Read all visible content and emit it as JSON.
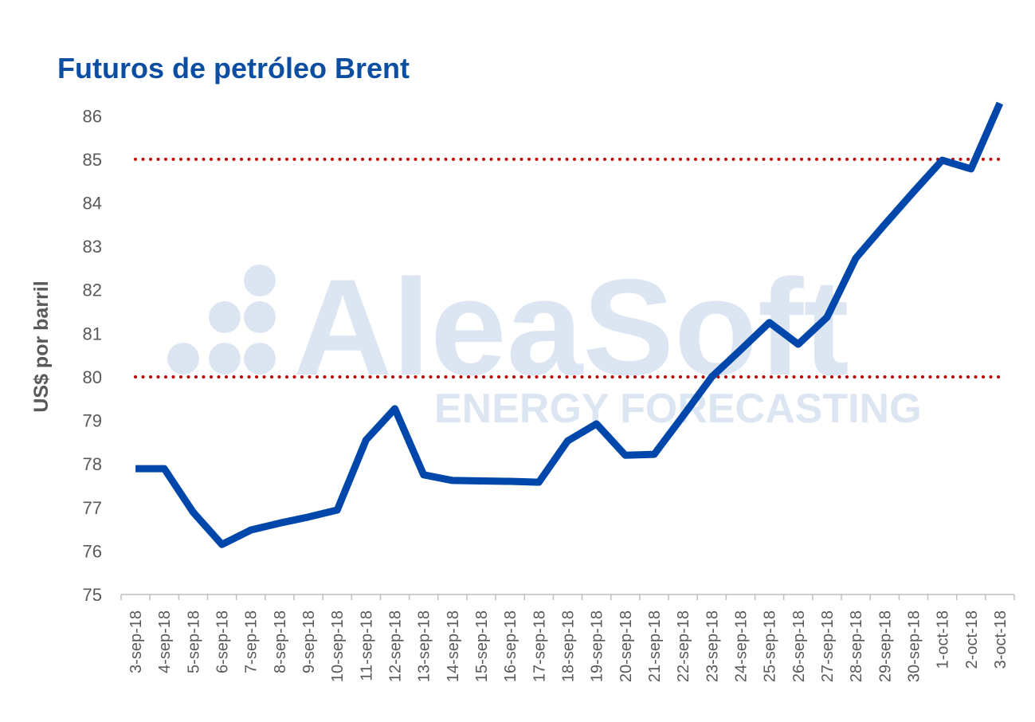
{
  "chart_data": {
    "type": "line",
    "title": "Futuros de petróleo Brent",
    "y_label": "US$ por barril",
    "watermark": {
      "title": "AleaSoft",
      "subtitle": "ENERGY FORECASTING"
    },
    "categories": [
      "3-sep-18",
      "4-sep-18",
      "5-sep-18",
      "6-sep-18",
      "7-sep-18",
      "8-sep-18",
      "9-sep-18",
      "10-sep-18",
      "11-sep-18",
      "12-sep-18",
      "13-sep-18",
      "14-sep-18",
      "15-sep-18",
      "16-sep-18",
      "17-sep-18",
      "18-sep-18",
      "19-sep-18",
      "20-sep-18",
      "21-sep-18",
      "22-sep-18",
      "23-sep-18",
      "24-sep-18",
      "25-sep-18",
      "26-sep-18",
      "27-sep-18",
      "28-sep-18",
      "29-sep-18",
      "30-sep-18",
      "1-oct-18",
      "2-oct-18",
      "3-oct-18"
    ],
    "series": [
      {
        "name": "Brent",
        "color": "#0047ab",
        "values": [
          77.89,
          77.89,
          76.89,
          76.15,
          76.48,
          76.64,
          76.78,
          76.94,
          78.55,
          79.27,
          77.75,
          77.62,
          77.61,
          77.6,
          77.58,
          78.53,
          78.92,
          78.2,
          78.22,
          79.1,
          80.0,
          80.62,
          81.25,
          80.75,
          81.37,
          82.73,
          83.5,
          84.25,
          84.98,
          84.78,
          86.29
        ]
      }
    ],
    "ylim": [
      75,
      86.5
    ],
    "yticks": [
      75,
      76,
      77,
      78,
      79,
      80,
      81,
      82,
      83,
      84,
      85,
      86
    ],
    "reference_lines": [
      80,
      85
    ],
    "reference_color": "#c00000"
  }
}
